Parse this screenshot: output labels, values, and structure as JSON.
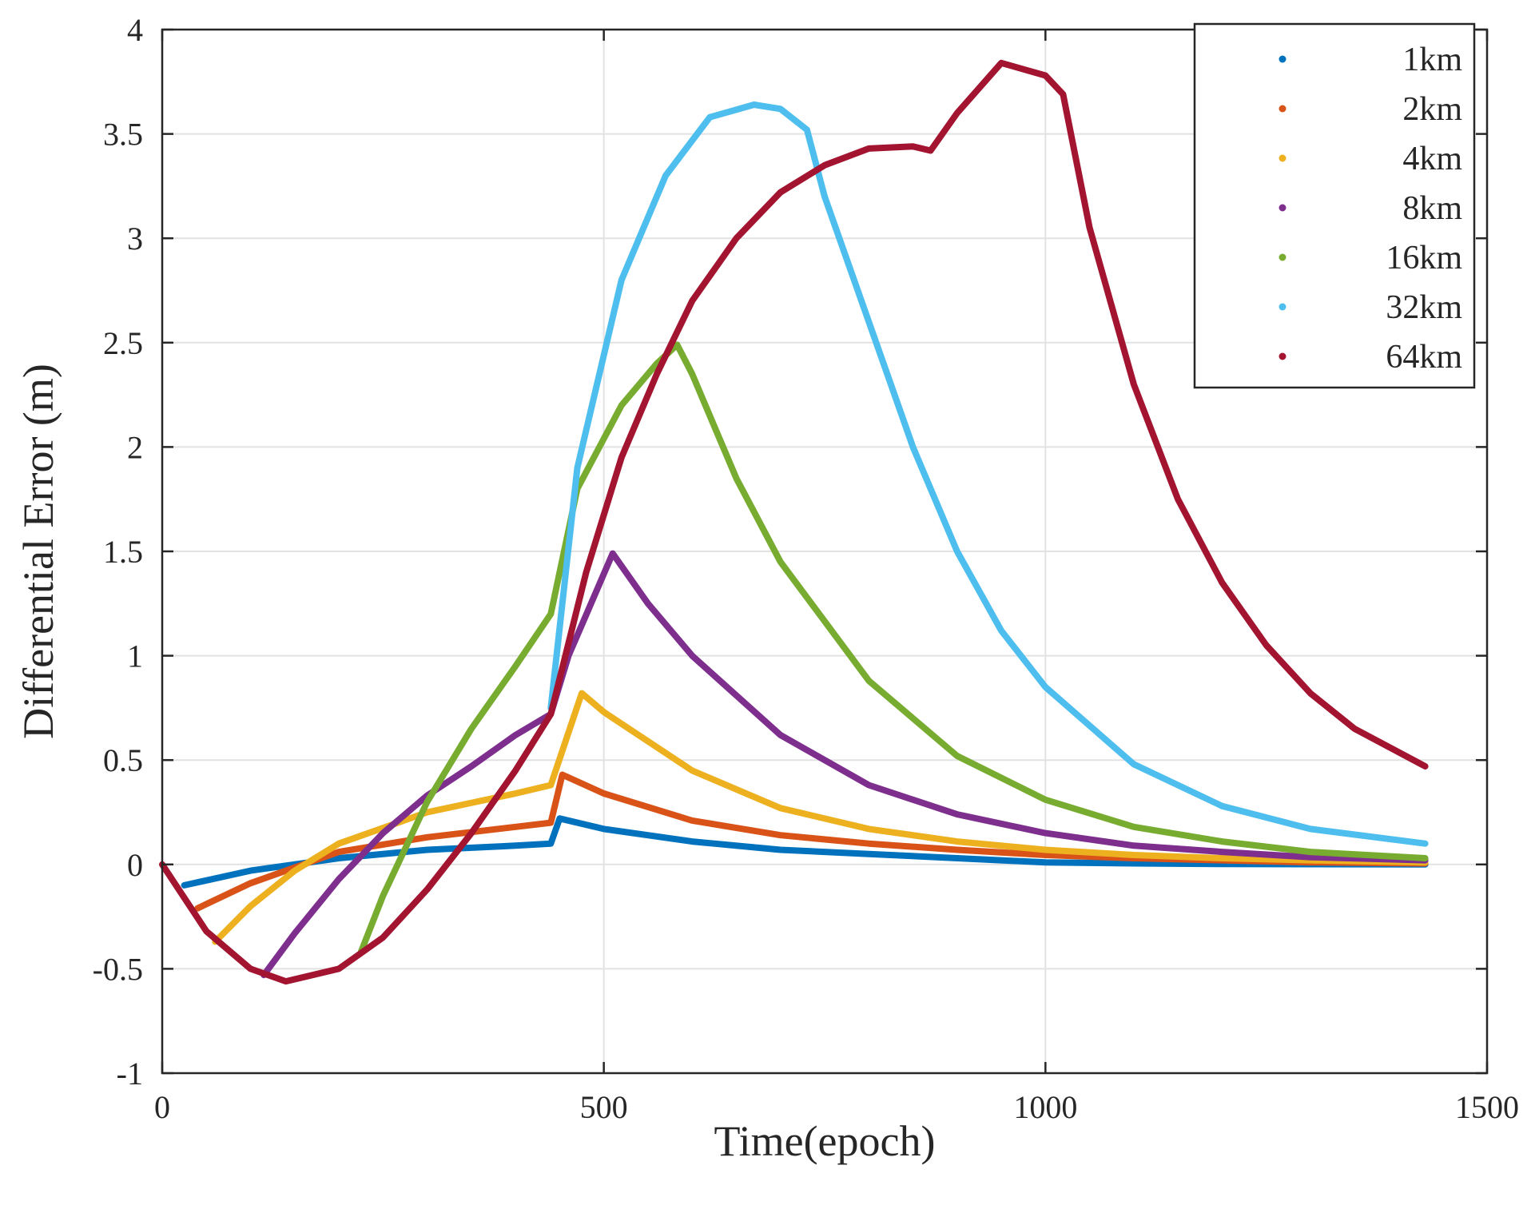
{
  "chart_data": {
    "type": "line",
    "title": "",
    "xlabel": "Time(epoch)",
    "ylabel": "Differential Error (m)",
    "xlim": [
      0,
      1500
    ],
    "ylim": [
      -1,
      4
    ],
    "xticks": [
      0,
      500,
      1000,
      1500
    ],
    "xtick_labels": [
      "0",
      "500",
      "1000",
      "1500"
    ],
    "yticks": [
      -1,
      -0.5,
      0,
      0.5,
      1,
      1.5,
      2,
      2.5,
      3,
      3.5,
      4
    ],
    "ytick_labels": [
      "-1",
      "-0.5",
      "0",
      "0.5",
      "1",
      "1.5",
      "2",
      "2.5",
      "3",
      "3.5",
      "4"
    ],
    "grid": true,
    "legend_position": "top-right",
    "series": [
      {
        "name": "1km",
        "color": "#0072BD",
        "x": [
          25,
          100,
          200,
          300,
          400,
          440,
          450,
          500,
          600,
          700,
          800,
          900,
          1000,
          1100,
          1200,
          1300,
          1430
        ],
        "y": [
          -0.1,
          -0.03,
          0.03,
          0.07,
          0.09,
          0.1,
          0.22,
          0.17,
          0.11,
          0.07,
          0.05,
          0.03,
          0.01,
          0.005,
          0.002,
          0.001,
          0.0
        ]
      },
      {
        "name": "2km",
        "color": "#D95319",
        "x": [
          40,
          100,
          200,
          300,
          400,
          440,
          453,
          500,
          600,
          700,
          800,
          900,
          1000,
          1100,
          1200,
          1300,
          1430
        ],
        "y": [
          -0.21,
          -0.09,
          0.06,
          0.13,
          0.18,
          0.2,
          0.43,
          0.34,
          0.21,
          0.14,
          0.1,
          0.07,
          0.045,
          0.03,
          0.02,
          0.01,
          0.005
        ]
      },
      {
        "name": "4km",
        "color": "#EDB120",
        "x": [
          60,
          100,
          150,
          200,
          300,
          400,
          440,
          475,
          500,
          600,
          700,
          800,
          900,
          1000,
          1100,
          1200,
          1300,
          1430
        ],
        "y": [
          -0.37,
          -0.2,
          -0.03,
          0.1,
          0.25,
          0.34,
          0.38,
          0.82,
          0.73,
          0.45,
          0.27,
          0.17,
          0.11,
          0.07,
          0.045,
          0.03,
          0.02,
          0.01
        ]
      },
      {
        "name": "8km",
        "color": "#7E2F8E",
        "x": [
          115,
          150,
          200,
          250,
          300,
          350,
          400,
          440,
          460,
          510,
          550,
          600,
          700,
          800,
          900,
          1000,
          1100,
          1200,
          1300,
          1430
        ],
        "y": [
          -0.53,
          -0.33,
          -0.07,
          0.15,
          0.33,
          0.47,
          0.62,
          0.72,
          1.0,
          1.49,
          1.25,
          1.0,
          0.62,
          0.38,
          0.24,
          0.15,
          0.09,
          0.06,
          0.035,
          0.02
        ]
      },
      {
        "name": "16km",
        "color": "#77AC30",
        "x": [
          225,
          250,
          300,
          350,
          400,
          440,
          470,
          520,
          560,
          583,
          600,
          650,
          700,
          800,
          900,
          1000,
          1100,
          1200,
          1300,
          1430
        ],
        "y": [
          -0.42,
          -0.15,
          0.3,
          0.65,
          0.95,
          1.2,
          1.8,
          2.2,
          2.4,
          2.49,
          2.35,
          1.85,
          1.45,
          0.88,
          0.52,
          0.31,
          0.18,
          0.11,
          0.06,
          0.03
        ]
      },
      {
        "name": "32km",
        "color": "#4DBEEE",
        "x": [
          440,
          470,
          520,
          570,
          620,
          670,
          700,
          730,
          750,
          800,
          850,
          900,
          950,
          1000,
          1100,
          1200,
          1300,
          1430
        ],
        "y": [
          0.75,
          1.9,
          2.8,
          3.3,
          3.58,
          3.64,
          3.62,
          3.52,
          3.2,
          2.6,
          2.0,
          1.5,
          1.12,
          0.85,
          0.48,
          0.28,
          0.17,
          0.1
        ]
      },
      {
        "name": "64km",
        "color": "#A2142F",
        "x": [
          0,
          50,
          100,
          140,
          200,
          250,
          300,
          350,
          400,
          440,
          480,
          520,
          560,
          600,
          650,
          700,
          750,
          800,
          850,
          870,
          900,
          950,
          1000,
          1020,
          1050,
          1100,
          1150,
          1200,
          1250,
          1300,
          1350,
          1430
        ],
        "y": [
          0,
          -0.32,
          -0.5,
          -0.56,
          -0.5,
          -0.35,
          -0.12,
          0.15,
          0.45,
          0.72,
          1.4,
          1.95,
          2.35,
          2.7,
          3.0,
          3.22,
          3.35,
          3.43,
          3.44,
          3.42,
          3.6,
          3.84,
          3.78,
          3.69,
          3.05,
          2.3,
          1.75,
          1.35,
          1.05,
          0.82,
          0.65,
          0.47
        ]
      }
    ]
  }
}
